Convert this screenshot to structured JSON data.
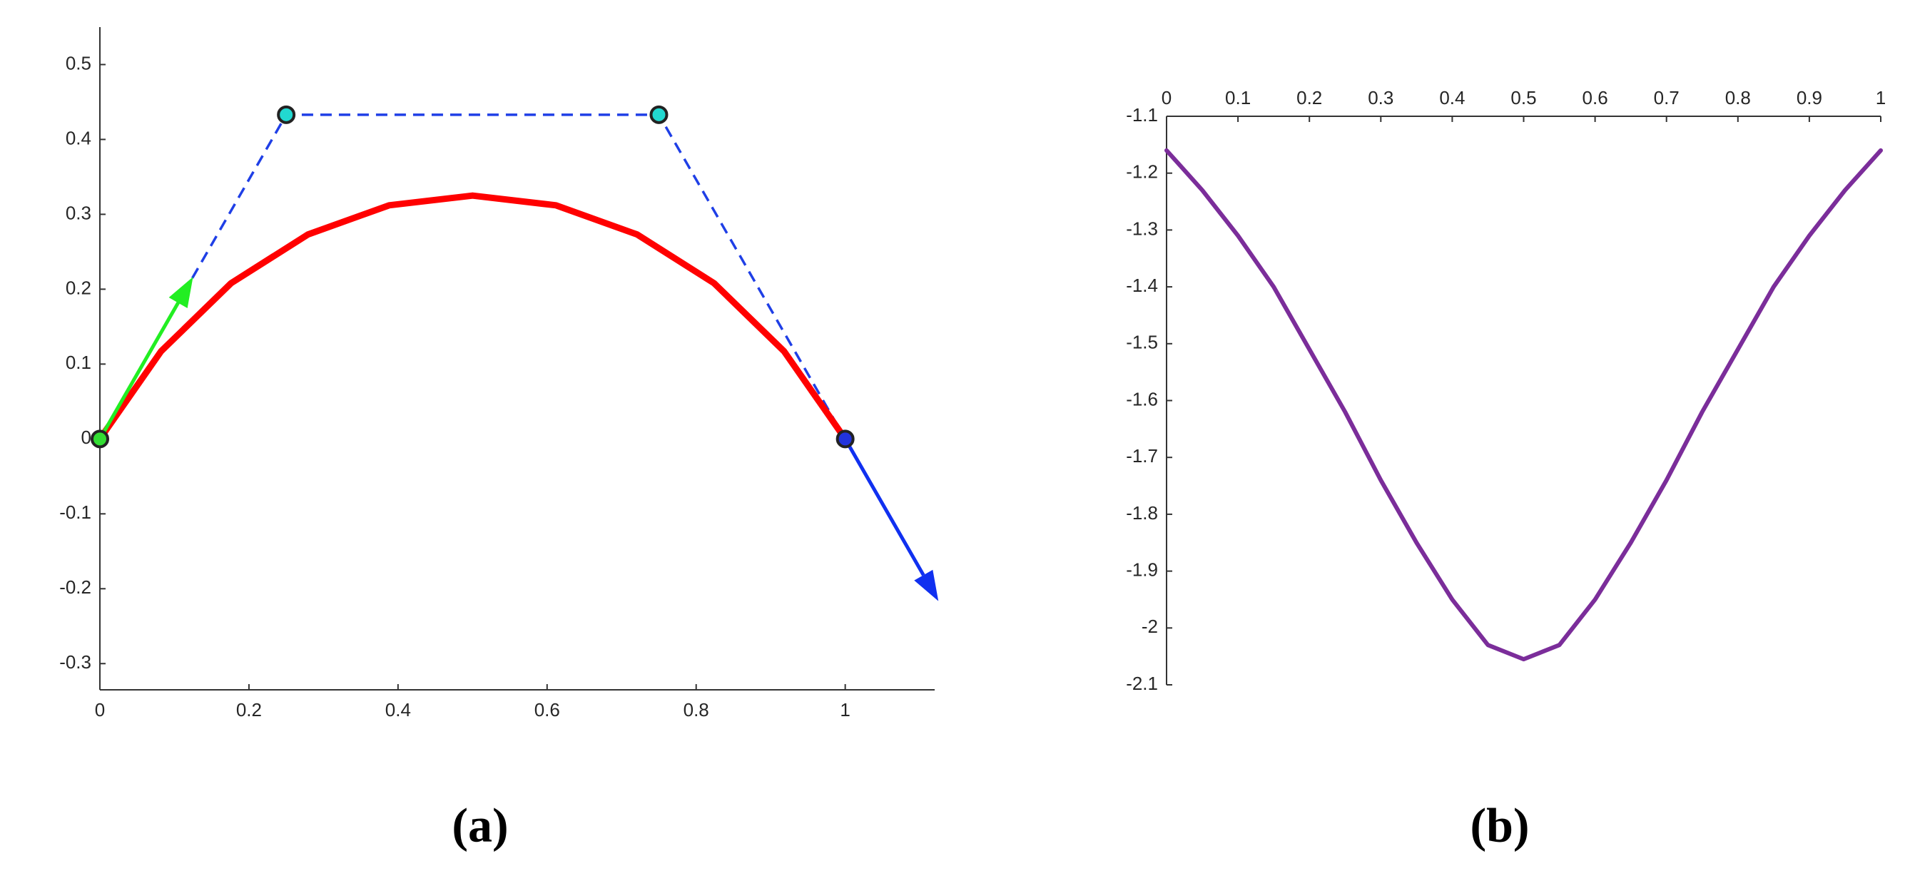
{
  "chart_data": [
    {
      "type": "line",
      "title": "(a)",
      "xaxis_position": "bottom",
      "xlim": [
        0,
        1.12
      ],
      "ylim": [
        -0.335,
        0.55
      ],
      "xticks": [
        0,
        0.2,
        0.4,
        0.6,
        0.8,
        1
      ],
      "yticks": [
        -0.3,
        -0.2,
        -0.1,
        0,
        0.1,
        0.2,
        0.3,
        0.4,
        0.5
      ],
      "series": [
        {
          "color": "#ff0000",
          "width": 9,
          "dashed": false,
          "x": [
            0,
            0.082,
            0.176,
            0.279,
            0.388,
            0.5,
            0.612,
            0.721,
            0.824,
            0.918,
            1
          ],
          "values": [
            0,
            0.117,
            0.208,
            0.273,
            0.312,
            0.325,
            0.312,
            0.273,
            0.208,
            0.117,
            0
          ]
        },
        {
          "color": "#1f3fe6",
          "width": 3.5,
          "dashed": true,
          "x": [
            0,
            0.25,
            0.75,
            1
          ],
          "values": [
            0,
            0.433,
            0.433,
            0
          ]
        }
      ],
      "arrows": [
        {
          "color": "#22ee22",
          "x": [
            0,
            0.125
          ],
          "values": [
            0,
            0.2165
          ]
        },
        {
          "color": "#1030f0",
          "x": [
            1,
            1.125
          ],
          "values": [
            0,
            -0.2165
          ]
        }
      ],
      "markers": [
        {
          "color": "#33dd33",
          "x": 0,
          "value": 0
        },
        {
          "color": "#22d8d0",
          "x": 0.25,
          "value": 0.433
        },
        {
          "color": "#22d8d0",
          "x": 0.75,
          "value": 0.433
        },
        {
          "color": "#2233dd",
          "x": 1,
          "value": 0
        }
      ]
    },
    {
      "type": "line",
      "title": "(b)",
      "xaxis_position": "top",
      "xlim": [
        0,
        1
      ],
      "ylim": [
        -2.1,
        -1.1
      ],
      "xticks": [
        0,
        0.1,
        0.2,
        0.3,
        0.4,
        0.5,
        0.6,
        0.7,
        0.8,
        0.9,
        1
      ],
      "yticks": [
        -2.1,
        -2,
        -1.9,
        -1.8,
        -1.7,
        -1.6,
        -1.5,
        -1.4,
        -1.3,
        -1.2,
        -1.1
      ],
      "series": [
        {
          "color": "#7b2d9a",
          "width": 6,
          "dashed": false,
          "x": [
            0,
            0.05,
            0.1,
            0.15,
            0.2,
            0.25,
            0.3,
            0.35,
            0.4,
            0.45,
            0.5,
            0.55,
            0.6,
            0.65,
            0.7,
            0.75,
            0.8,
            0.85,
            0.9,
            0.95,
            1
          ],
          "values": [
            -1.16,
            -1.23,
            -1.31,
            -1.4,
            -1.51,
            -1.62,
            -1.74,
            -1.85,
            -1.95,
            -2.03,
            -2.055,
            -2.03,
            -1.95,
            -1.85,
            -1.74,
            -1.62,
            -1.51,
            -1.4,
            -1.31,
            -1.23,
            -1.16
          ]
        }
      ],
      "arrows": [],
      "markers": []
    }
  ]
}
